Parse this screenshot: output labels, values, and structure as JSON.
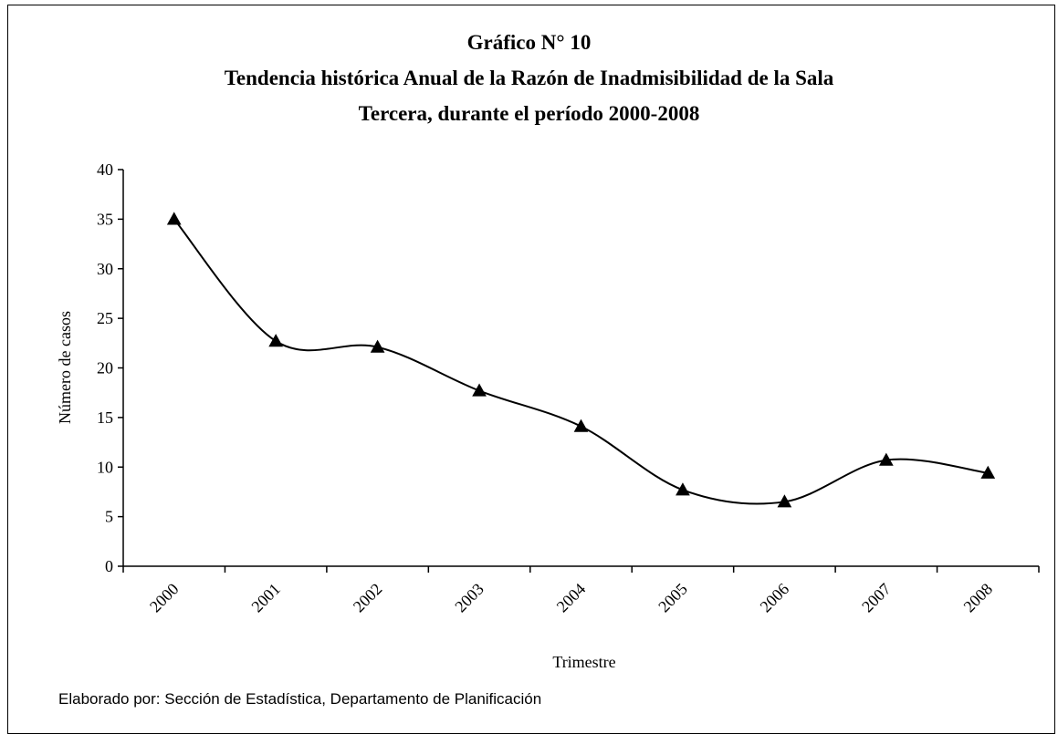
{
  "chart_data": {
    "type": "line",
    "title": "Gráfico N° 10",
    "subtitle_lines": [
      "Tendencia histórica Anual de la Razón de Inadmisibilidad de la Sala",
      "Tercera, durante el período 2000-2008"
    ],
    "xlabel": "Trimestre",
    "ylabel": "Número de casos",
    "categories": [
      "2000",
      "2001",
      "2002",
      "2003",
      "2004",
      "2005",
      "2006",
      "2007",
      "2008"
    ],
    "series": [
      {
        "values": [
          35.0,
          22.7,
          22.1,
          17.7,
          14.1,
          7.7,
          6.5,
          10.7,
          9.4
        ]
      }
    ],
    "ylim": [
      0,
      40
    ],
    "yticks": [
      0,
      5,
      10,
      15,
      20,
      25,
      30,
      35,
      40
    ],
    "marker": "triangle",
    "smooth": true,
    "grid": false,
    "legend": "none"
  },
  "source_note": "Elaborado por: Sección de Estadística, Departamento de Planificación"
}
